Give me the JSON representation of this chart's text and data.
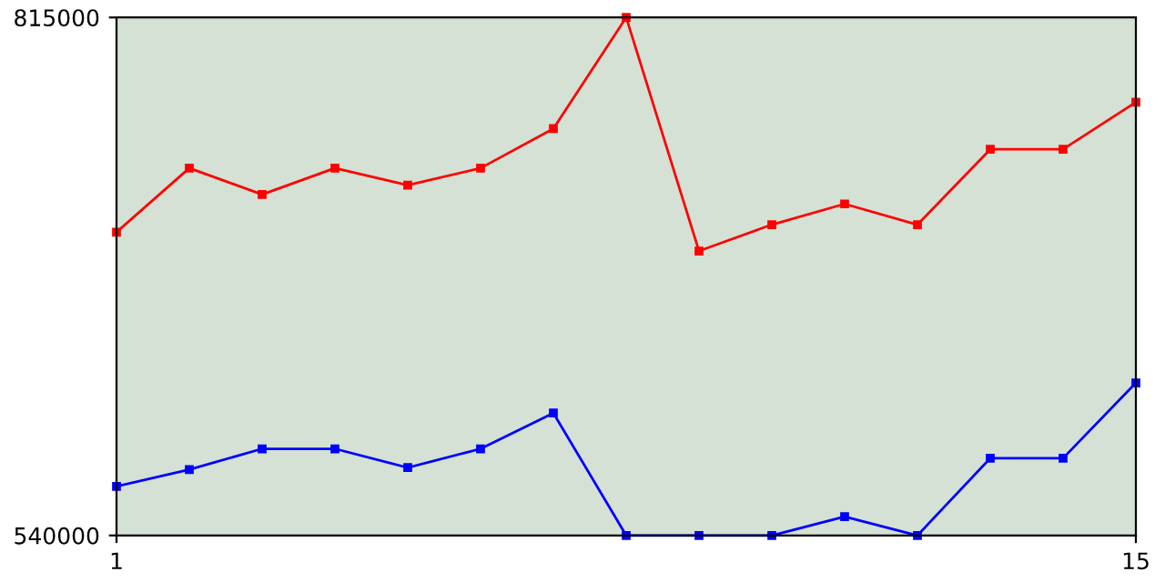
{
  "chart_data": {
    "type": "line",
    "x": [
      1,
      2,
      3,
      4,
      5,
      6,
      7,
      8,
      9,
      10,
      11,
      12,
      13,
      14,
      15
    ],
    "series": [
      {
        "color": "#ff0000",
        "values": [
          701000,
          735000,
          721000,
          735000,
          726000,
          735000,
          756000,
          815000,
          691000,
          705000,
          716000,
          705000,
          745000,
          745000,
          770000
        ]
      },
      {
        "color": "#0000ff",
        "values": [
          566000,
          575000,
          586000,
          586000,
          576000,
          586000,
          605000,
          540000,
          540000,
          540000,
          550000,
          540000,
          581000,
          581000,
          621000
        ]
      }
    ],
    "xlim": [
      1,
      15
    ],
    "xticks": [
      1,
      15
    ],
    "ylim": [
      540000,
      815000
    ],
    "yticks": [
      540000,
      815000
    ],
    "grid": false,
    "marker": "square",
    "line_style": "solid"
  }
}
